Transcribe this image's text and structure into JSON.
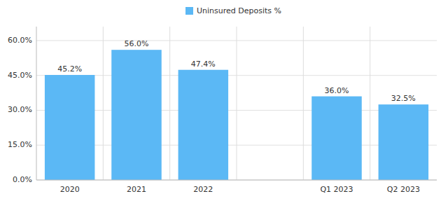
{
  "chart_data": {
    "type": "bar",
    "categories": [
      "2020",
      "2021",
      "2022",
      null,
      "Q1 2023",
      "Q2 2023"
    ],
    "series": [
      {
        "name": "Uninsured Deposits %",
        "color": "#5BB8F5",
        "values": [
          45.2,
          56.0,
          47.4,
          null,
          36.0,
          32.5
        ],
        "value_labels": [
          "45.2%",
          "56.0%",
          "47.4%",
          null,
          "36.0%",
          "32.5%"
        ]
      }
    ],
    "ylim": [
      0,
      66
    ],
    "yticks": [
      {
        "value": 0,
        "label": "0.0%"
      },
      {
        "value": 15,
        "label": "15.0%"
      },
      {
        "value": 30,
        "label": "30.0%"
      },
      {
        "value": 45,
        "label": "45.0%"
      },
      {
        "value": 60,
        "label": "60.0%"
      }
    ],
    "grid": true,
    "data_labels": true,
    "legend": "top"
  }
}
